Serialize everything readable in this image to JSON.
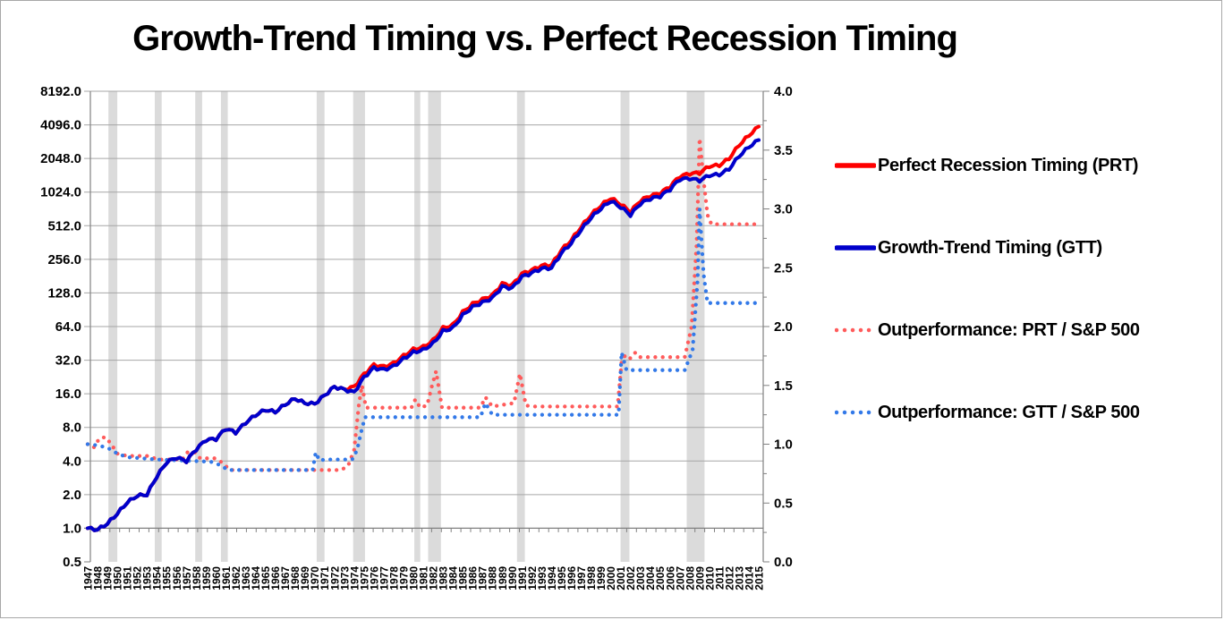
{
  "title": "Growth-Trend Timing vs. Perfect Recession Timing",
  "legend": [
    {
      "label": "Perfect Recession Timing (PRT)",
      "color": "#fe0000",
      "style": "solid"
    },
    {
      "label": "Growth-Trend Timing (GTT)",
      "color": "#0000cb",
      "style": "solid"
    },
    {
      "label": "Outperformance: PRT / S&P 500",
      "color": "#ff5b5b",
      "style": "dotted"
    },
    {
      "label": "Outperformance: GTT / S&P 500",
      "color": "#3379e8",
      "style": "dotted"
    }
  ],
  "colors": {
    "recession_band": "#dbdbdb",
    "gridline": "#a6a6a6",
    "axis": "#808080",
    "text": "#000000",
    "prt_solid": "#fe0000",
    "gtt_solid": "#0000cb",
    "prt_dotted": "#ff5b5b",
    "gtt_dotted": "#3379e8"
  },
  "chart_data": {
    "type": "line",
    "title": "Growth-Trend Timing vs. Perfect Recession Timing",
    "x_categories": [
      1947,
      1948,
      1949,
      1950,
      1951,
      1952,
      1953,
      1954,
      1955,
      1956,
      1957,
      1958,
      1959,
      1960,
      1961,
      1962,
      1963,
      1964,
      1965,
      1966,
      1967,
      1968,
      1969,
      1970,
      1971,
      1972,
      1973,
      1974,
      1975,
      1976,
      1977,
      1978,
      1979,
      1980,
      1981,
      1982,
      1983,
      1984,
      1985,
      1986,
      1987,
      1988,
      1989,
      1990,
      1991,
      1992,
      1993,
      1994,
      1995,
      1996,
      1997,
      1998,
      1999,
      2000,
      2001,
      2002,
      2003,
      2004,
      2005,
      2006,
      2007,
      2008,
      2009,
      2010,
      2011,
      2012,
      2013,
      2014,
      2015
    ],
    "left_axis": {
      "scale": "log2",
      "min": 0.5,
      "max": 8192,
      "tick_labels": [
        "8192.0",
        "4096.0",
        "2048.0",
        "1024.0",
        "512.0",
        "256.0",
        "128.0",
        "64.0",
        "32.0",
        "16.0",
        "8.0",
        "4.0",
        "2.0",
        "1.0",
        "0.5"
      ]
    },
    "right_axis": {
      "min": 0.0,
      "max": 4.0,
      "minor_step": 0.25,
      "tick_labels": [
        "4.0",
        "3.5",
        "3.0",
        "2.5",
        "2.0",
        "1.5",
        "1.0",
        "0.5",
        "0.0"
      ]
    },
    "recession_bands": [
      [
        1949.1,
        1950.0
      ],
      [
        1953.8,
        1954.5
      ],
      [
        1957.9,
        1958.6
      ],
      [
        1960.5,
        1961.2
      ],
      [
        1970.2,
        1971.0
      ],
      [
        1973.9,
        1975.1
      ],
      [
        1980.1,
        1980.7
      ],
      [
        1981.5,
        1982.8
      ],
      [
        1990.5,
        1991.3
      ],
      [
        2001.0,
        2001.9
      ],
      [
        2007.7,
        2009.5
      ]
    ],
    "series": [
      {
        "name": "Perfect Recession Timing (PRT)",
        "axis": "left",
        "style": "solid",
        "color": "#fe0000",
        "values": [
          1.0,
          0.97,
          1.1,
          1.35,
          1.7,
          1.95,
          2.0,
          2.9,
          3.9,
          4.3,
          4.0,
          5.1,
          6.2,
          6.3,
          7.8,
          7.2,
          8.8,
          10.3,
          11.5,
          11.0,
          12.8,
          14.5,
          13.2,
          13.0,
          15.5,
          18.5,
          17.5,
          18.5,
          24,
          29,
          28,
          30,
          35,
          40,
          42,
          48,
          62,
          66,
          86,
          102,
          112,
          122,
          155,
          150,
          190,
          205,
          225,
          228,
          310,
          380,
          500,
          640,
          775,
          905,
          800,
          680,
          860,
          950,
          1000,
          1150,
          1420,
          1500,
          1520,
          1750,
          1780,
          2050,
          2700,
          3300,
          3950
        ]
      },
      {
        "name": "Growth-Trend Timing (GTT)",
        "axis": "left",
        "style": "solid",
        "color": "#0000cb",
        "values": [
          1.0,
          0.97,
          1.1,
          1.35,
          1.7,
          1.95,
          2.0,
          2.9,
          3.9,
          4.3,
          4.0,
          5.1,
          6.2,
          6.3,
          7.8,
          7.2,
          8.8,
          10.3,
          11.5,
          11.0,
          12.8,
          14.5,
          13.2,
          13.0,
          15.5,
          18.5,
          17.5,
          16.5,
          22.5,
          27.3,
          26.3,
          28.2,
          32.9,
          37.6,
          39.5,
          45.1,
          58.3,
          62.0,
          80.8,
          95.9,
          105,
          115,
          146,
          141,
          179,
          193,
          212,
          214,
          291,
          357,
          470,
          602,
          729,
          851,
          752,
          639,
          808,
          893,
          940,
          1081,
          1335,
          1360,
          1300,
          1450,
          1470,
          1650,
          2150,
          2600,
          3000
        ]
      },
      {
        "name": "Outperformance: PRT / S&P 500",
        "axis": "right",
        "style": "dotted",
        "color": "#ff5b5b",
        "x": [
          1947,
          1947.6,
          1948.2,
          1948.8,
          1949.4,
          1950,
          1951,
          1953,
          1953.8,
          1954.3,
          1956.6,
          1957.1,
          1957.9,
          1958.4,
          1959.9,
          1960.7,
          1961.4,
          1962,
          1972.7,
          1973.4,
          1974,
          1974.5,
          1974.8,
          1975.2,
          1979.8,
          1980.2,
          1980.7,
          1981.4,
          1981.9,
          1982.3,
          1982.9,
          1986.8,
          1987.3,
          1988,
          1990.2,
          1990.8,
          1991.4,
          1992,
          2000.7,
          2001.1,
          2001.5,
          2002,
          2002.5,
          2003,
          2007.5,
          2008.2,
          2008.7,
          2009,
          2009.4,
          2009.8,
          2010.2,
          2015
        ],
        "values": [
          1.0,
          0.97,
          1.05,
          1.06,
          1.0,
          0.92,
          0.9,
          0.9,
          0.88,
          0.87,
          0.87,
          0.93,
          0.93,
          0.88,
          0.88,
          0.84,
          0.78,
          0.78,
          0.78,
          0.82,
          0.95,
          1.35,
          1.5,
          1.31,
          1.31,
          1.38,
          1.31,
          1.33,
          1.5,
          1.62,
          1.31,
          1.31,
          1.4,
          1.32,
          1.35,
          1.6,
          1.33,
          1.32,
          1.32,
          1.7,
          1.76,
          1.73,
          1.78,
          1.74,
          1.74,
          2.0,
          2.7,
          3.6,
          3.25,
          2.95,
          2.87,
          2.87
        ]
      },
      {
        "name": "Outperformance: GTT / S&P 500",
        "axis": "right",
        "style": "dotted",
        "color": "#3379e8",
        "x": [
          1947,
          1948,
          1949,
          1950,
          1951,
          1954,
          1957,
          1959.5,
          1960.5,
          1961.2,
          1961.8,
          1969.8,
          1970.1,
          1970.5,
          1971,
          1973.8,
          1974.3,
          1974.7,
          1975.1,
          1986.8,
          1987.3,
          1988,
          2000.8,
          2001.1,
          2001.6,
          2002,
          2007.5,
          2008.3,
          2008.8,
          2009,
          2009.4,
          2009.8,
          2015
        ],
        "values": [
          1.0,
          0.99,
          0.97,
          0.92,
          0.89,
          0.87,
          0.86,
          0.85,
          0.82,
          0.78,
          0.78,
          0.78,
          0.93,
          0.86,
          0.87,
          0.87,
          0.95,
          1.1,
          1.23,
          1.23,
          1.35,
          1.25,
          1.25,
          1.78,
          1.63,
          1.63,
          1.63,
          1.8,
          2.4,
          3.0,
          2.45,
          2.2,
          2.2
        ]
      }
    ]
  }
}
